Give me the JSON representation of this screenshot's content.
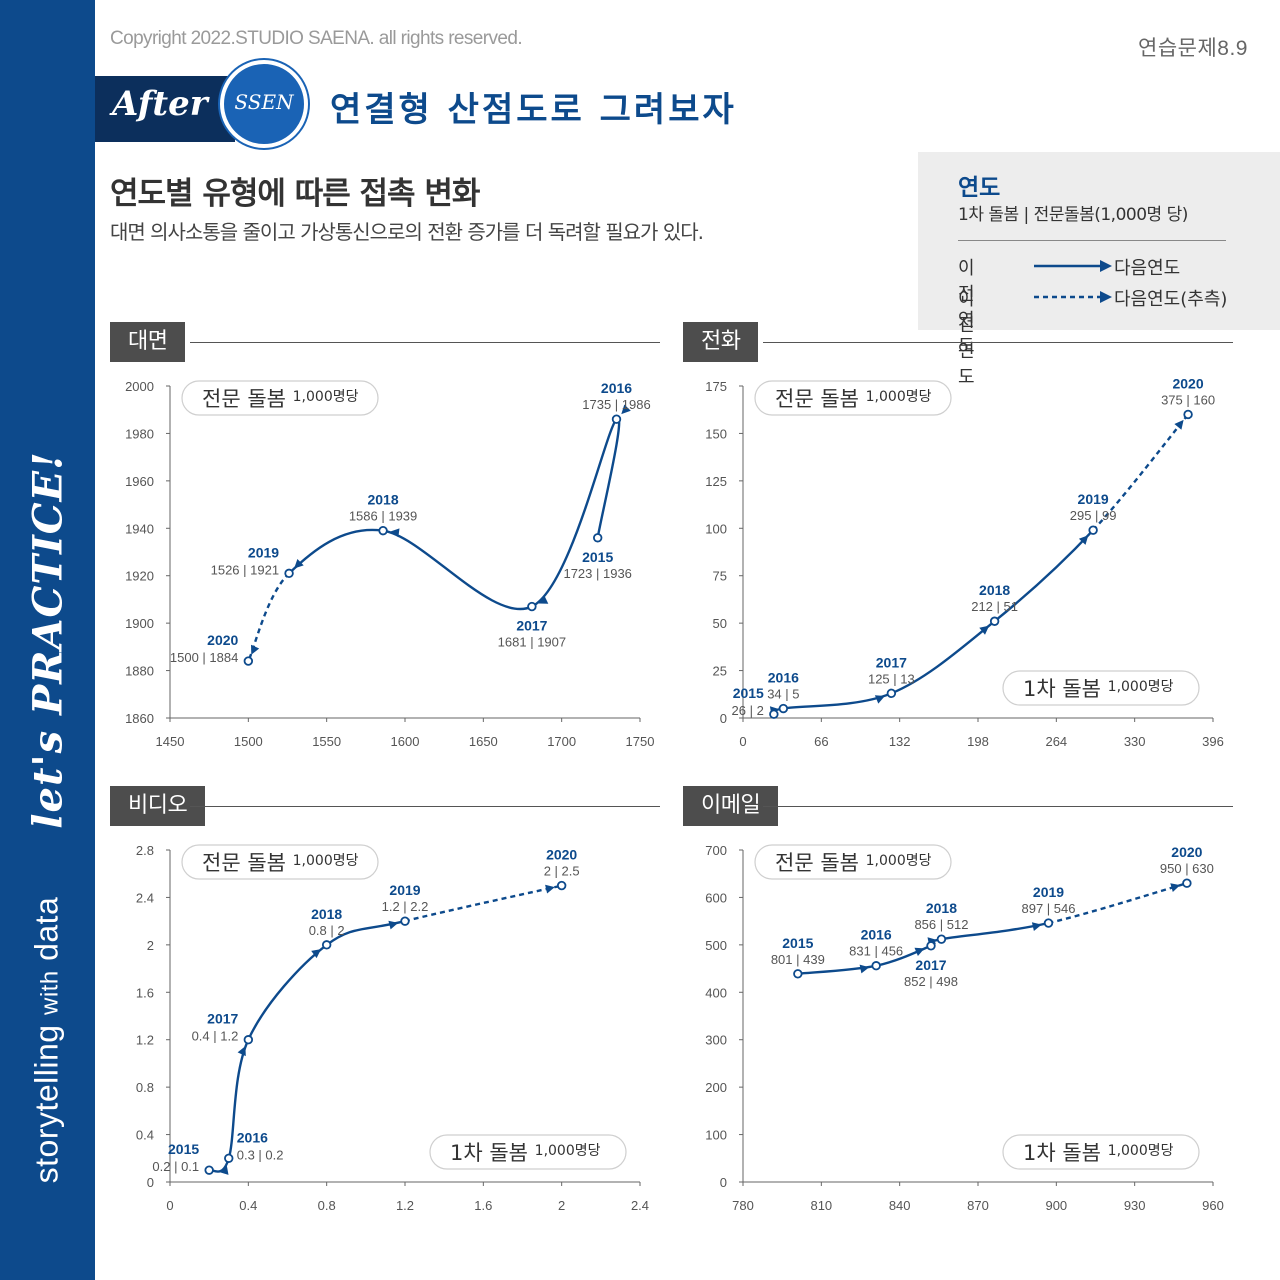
{
  "header": {
    "copyright": "Copyright 2022.STUDIO SAENA. all rights reserved.",
    "exercise": "연습문제8.9",
    "after_label": "After",
    "ssen_label": "SSEN",
    "headline": "연결형 산점도로 그려보자",
    "title": "연도별 유형에 따른 접촉 변화",
    "subtitle": "대면 의사소통을 줄이고 가상통신으로의 전환 증가를 더 독려할 필요가 있다."
  },
  "sidebar": {
    "script_text": "let's PRACTICE!",
    "brand_main": "storytelling",
    "brand_with": "with",
    "brand_data": "data"
  },
  "legend": {
    "title": "연도",
    "subtitle": "1차 돌봄 | 전문돌봄(1,000명 당)",
    "row1_from": "이전연도",
    "row1_to": "다음연도",
    "row2_from": "이전연도",
    "row2_to": "다음연도(추측)"
  },
  "colors": {
    "brand": "#0d4a8c",
    "accent": "#1a63b5",
    "panel_label": "#4d4d4d"
  },
  "chart_data": [
    {
      "type": "scatter",
      "title": "대면",
      "ylabel_pill": "전문 돌봄",
      "ylabel_unit": "1,000명당",
      "xlim": [
        1450,
        1750
      ],
      "xticks": [
        1450,
        1500,
        1550,
        1600,
        1650,
        1700,
        1750
      ],
      "ylim": [
        1860,
        2000
      ],
      "yticks": [
        1860,
        1880,
        1900,
        1920,
        1940,
        1960,
        1980,
        2000
      ],
      "points": [
        {
          "year": "2015",
          "x": 1723,
          "y": 1936,
          "label": "1723 | 1936",
          "pos": "below"
        },
        {
          "year": "2016",
          "x": 1735,
          "y": 1986,
          "label": "1735 | 1986",
          "pos": "above"
        },
        {
          "year": "2017",
          "x": 1681,
          "y": 1907,
          "label": "1681 | 1907",
          "pos": "below"
        },
        {
          "year": "2018",
          "x": 1586,
          "y": 1939,
          "label": "1586 | 1939",
          "pos": "above"
        },
        {
          "year": "2019",
          "x": 1526,
          "y": 1921,
          "label": "1526 | 1921",
          "pos": "left"
        },
        {
          "year": "2020",
          "x": 1500,
          "y": 1884,
          "label": "1500 | 1884",
          "pos": "left"
        }
      ]
    },
    {
      "type": "scatter",
      "title": "전화",
      "ylabel_pill": "전문 돌봄",
      "ylabel_unit": "1,000명당",
      "xlabel_pill": "1차 돌봄",
      "xlabel_unit": "1,000명당",
      "xlim": [
        0,
        396
      ],
      "xticks": [
        0,
        66,
        132,
        198,
        264,
        330,
        396
      ],
      "ylim": [
        0,
        175
      ],
      "yticks": [
        0,
        25,
        50,
        75,
        100,
        125,
        150,
        175
      ],
      "points": [
        {
          "year": "2015",
          "x": 26,
          "y": 2,
          "label": "26 | 2",
          "pos": "left"
        },
        {
          "year": "2016",
          "x": 34,
          "y": 5,
          "label": "34 | 5",
          "pos": "above"
        },
        {
          "year": "2017",
          "x": 125,
          "y": 13,
          "label": "125 | 13",
          "pos": "above"
        },
        {
          "year": "2018",
          "x": 212,
          "y": 51,
          "label": "212 | 51",
          "pos": "above"
        },
        {
          "year": "2019",
          "x": 295,
          "y": 99,
          "label": "295 | 99",
          "pos": "above"
        },
        {
          "year": "2020",
          "x": 375,
          "y": 160,
          "label": "375 | 160",
          "pos": "above"
        }
      ]
    },
    {
      "type": "scatter",
      "title": "비디오",
      "ylabel_pill": "전문 돌봄",
      "ylabel_unit": "1,000명당",
      "xlabel_pill": "1차 돌봄",
      "xlabel_unit": "1,000명당",
      "xlim": [
        0,
        2.4
      ],
      "xticks": [
        0,
        0.4,
        0.8,
        1.2,
        1.6,
        2,
        2.4
      ],
      "ylim": [
        0,
        2.8
      ],
      "yticks": [
        0,
        0.4,
        0.8,
        1.2,
        1.6,
        2,
        2.4,
        2.8
      ],
      "points": [
        {
          "year": "2015",
          "x": 0.2,
          "y": 0.1,
          "label": "0.2 | 0.1",
          "pos": "left"
        },
        {
          "year": "2016",
          "x": 0.3,
          "y": 0.2,
          "label": "0.3 | 0.2",
          "pos": "right"
        },
        {
          "year": "2017",
          "x": 0.4,
          "y": 1.2,
          "label": "0.4 | 1.2",
          "pos": "left"
        },
        {
          "year": "2018",
          "x": 0.8,
          "y": 2,
          "label": "0.8 | 2",
          "pos": "above"
        },
        {
          "year": "2019",
          "x": 1.2,
          "y": 2.2,
          "label": "1.2 | 2.2",
          "pos": "above"
        },
        {
          "year": "2020",
          "x": 2,
          "y": 2.5,
          "label": "2 | 2.5",
          "pos": "above"
        }
      ]
    },
    {
      "type": "scatter",
      "title": "이메일",
      "ylabel_pill": "전문 돌봄",
      "ylabel_unit": "1,000명당",
      "xlabel_pill": "1차 돌봄",
      "xlabel_unit": "1,000명당",
      "xlim": [
        780,
        960
      ],
      "xticks": [
        780,
        810,
        840,
        870,
        900,
        930,
        960
      ],
      "ylim": [
        0,
        700
      ],
      "yticks": [
        0,
        100,
        200,
        300,
        400,
        500,
        600,
        700
      ],
      "points": [
        {
          "year": "2015",
          "x": 801,
          "y": 439,
          "label": "801 | 439",
          "pos": "above"
        },
        {
          "year": "2016",
          "x": 831,
          "y": 456,
          "label": "831 | 456",
          "pos": "above"
        },
        {
          "year": "2017",
          "x": 852,
          "y": 498,
          "label": "852 | 498",
          "pos": "below"
        },
        {
          "year": "2018",
          "x": 856,
          "y": 512,
          "label": "856 | 512",
          "pos": "above"
        },
        {
          "year": "2019",
          "x": 897,
          "y": 546,
          "label": "897 | 546",
          "pos": "above"
        },
        {
          "year": "2020",
          "x": 950,
          "y": 630,
          "label": "950 | 630",
          "pos": "above"
        }
      ]
    }
  ]
}
